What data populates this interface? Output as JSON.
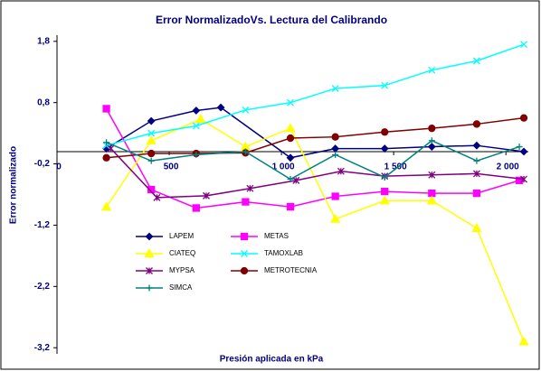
{
  "chart_data": {
    "type": "line",
    "title": "Error NormalizadoVs. Lectura del Calibrando",
    "xlabel": "Presión aplicada en  kPa",
    "ylabel": "Error normalizado",
    "xlim": [
      0,
      2100
    ],
    "xticks": [
      0,
      500,
      {
        "value": 1000,
        "label": "1 000"
      },
      {
        "value": 1500,
        "label": "1 500"
      },
      {
        "value": 2000,
        "label": "2 000"
      }
    ],
    "ylim": [
      -3.3,
      1.9
    ],
    "yticks": [
      {
        "value": 1.8,
        "label": "1,8"
      },
      {
        "value": 0.8,
        "label": "0,8"
      },
      {
        "value": -0.2,
        "label": "-0,2"
      },
      {
        "value": -1.2,
        "label": "-1,2"
      },
      {
        "value": -2.2,
        "label": "-2,2"
      },
      {
        "value": -3.2,
        "label": "-3,2"
      }
    ],
    "series": [
      {
        "name": "LAPEM",
        "color": "#000080",
        "marker": "diamond",
        "x": [
          220,
          420,
          620,
          730,
          1040,
          1240,
          1460,
          1670,
          1870,
          2080
        ],
        "values": [
          0.05,
          0.5,
          0.67,
          0.72,
          -0.1,
          0.05,
          0.05,
          0.08,
          0.1,
          0.0
        ]
      },
      {
        "name": "METAS",
        "color": "#ff00ff",
        "marker": "square",
        "x": [
          220,
          420,
          620,
          840,
          1040,
          1240,
          1460,
          1670,
          1870,
          2060
        ],
        "values": [
          0.7,
          -0.62,
          -0.92,
          -0.82,
          -0.9,
          -0.73,
          -0.65,
          -0.68,
          -0.68,
          -0.47
        ]
      },
      {
        "name": "CIATEQ",
        "color": "#ffff00",
        "marker": "triangle",
        "x": [
          220,
          420,
          640,
          840,
          1040,
          1240,
          1460,
          1670,
          1870,
          2080
        ],
        "values": [
          -0.9,
          0.18,
          0.53,
          0.08,
          0.38,
          -1.1,
          -0.8,
          -0.8,
          -1.25,
          -3.1
        ]
      },
      {
        "name": "TAMOXLAB",
        "color": "#00ffff",
        "marker": "x",
        "x": [
          220,
          420,
          620,
          840,
          1040,
          1240,
          1460,
          1670,
          1870,
          2080
        ],
        "values": [
          0.1,
          0.3,
          0.42,
          0.68,
          0.8,
          1.03,
          1.08,
          1.33,
          1.48,
          1.75
        ]
      },
      {
        "name": "MYPSA",
        "color": "#800080",
        "marker": "star",
        "x": [
          240,
          445,
          665,
          860,
          1065,
          1265,
          1460,
          1670,
          1870,
          2080
        ],
        "values": [
          0.05,
          -0.75,
          -0.72,
          -0.6,
          -0.47,
          -0.32,
          -0.4,
          -0.38,
          -0.36,
          -0.45
        ]
      },
      {
        "name": "METROTECNIA",
        "color": "#800000",
        "marker": "circle",
        "x": [
          220,
          420,
          620,
          840,
          1040,
          1240,
          1460,
          1670,
          1870,
          2080
        ],
        "values": [
          -0.1,
          -0.03,
          -0.03,
          -0.02,
          0.22,
          0.24,
          0.32,
          0.38,
          0.45,
          0.55
        ]
      },
      {
        "name": "SIMCA",
        "color": "#008080",
        "marker": "plus",
        "x": [
          220,
          420,
          620,
          840,
          1040,
          1240,
          1460,
          1670,
          1870,
          2060
        ],
        "values": [
          0.15,
          -0.15,
          -0.05,
          0.0,
          -0.45,
          -0.05,
          -0.42,
          0.18,
          -0.15,
          0.08
        ]
      }
    ]
  }
}
